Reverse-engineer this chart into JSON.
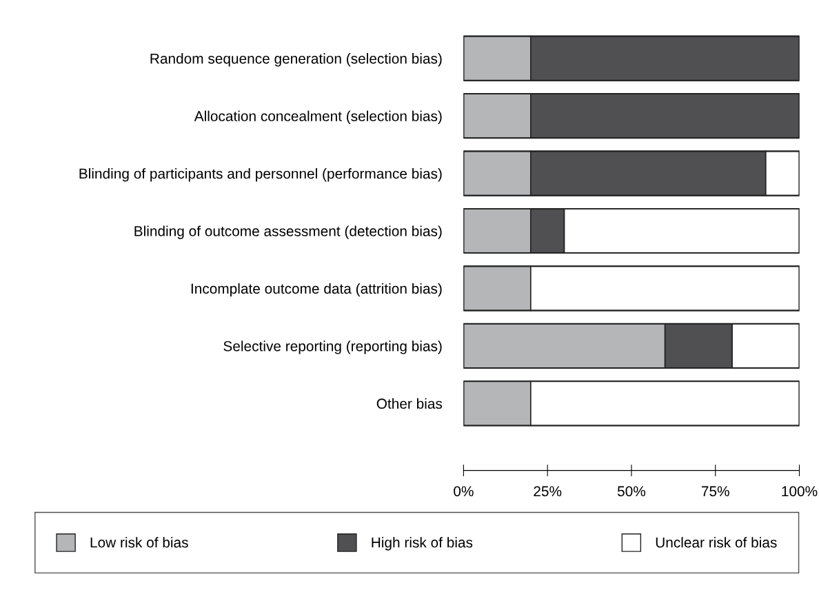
{
  "chart_data": {
    "type": "bar",
    "orientation": "horizontal",
    "stacked": true,
    "categories": [
      "Random sequence generation (selection bias)",
      "Allocation concealment (selection bias)",
      "Blinding of participants and personnel (performance bias)",
      "Blinding of outcome assessment (detection bias)",
      "Incomplate outcome data (attrition bias)",
      "Selective reporting (reporting bias)",
      "Other bias"
    ],
    "series": [
      {
        "name": "Low risk of bias",
        "color": "#b5b6b8",
        "values": [
          20,
          20,
          20,
          20,
          20,
          60,
          20
        ]
      },
      {
        "name": "High risk of bias",
        "color": "#505052",
        "values": [
          80,
          80,
          70,
          10,
          0,
          20,
          0
        ]
      },
      {
        "name": "Unclear risk of bias",
        "color": "#ffffff",
        "values": [
          0,
          0,
          10,
          70,
          80,
          20,
          80
        ]
      }
    ],
    "xlim": [
      0,
      100
    ],
    "xticks": [
      {
        "value": 0,
        "label": "0%"
      },
      {
        "value": 25,
        "label": "25%"
      },
      {
        "value": 50,
        "label": "50%"
      },
      {
        "value": 75,
        "label": "75%"
      },
      {
        "value": 100,
        "label": "100%"
      }
    ],
    "grid": false,
    "legend": "bottom"
  }
}
